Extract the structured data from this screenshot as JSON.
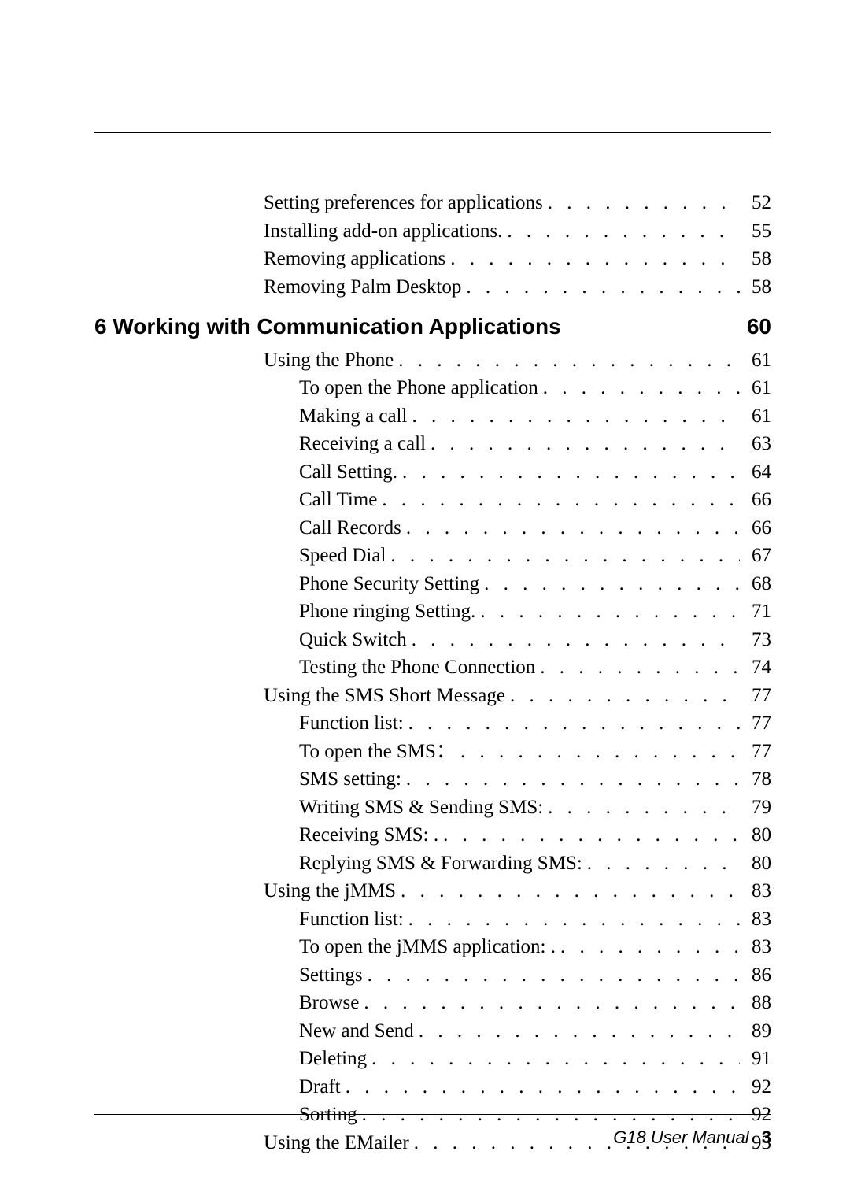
{
  "top_entries": [
    {
      "label": "Setting preferences for applications",
      "page": "52",
      "indent": 1
    },
    {
      "label": "Installing add-on applications.",
      "page": "55",
      "indent": 1
    },
    {
      "label": "Removing applications",
      "page": "58",
      "indent": 1
    },
    {
      "label": "Removing Palm Desktop",
      "page": "58",
      "indent": 1
    }
  ],
  "section": {
    "label": "6 Working with Communication Applications",
    "page": "60"
  },
  "entries": [
    {
      "label": "Using the Phone",
      "page": "61",
      "indent": 1
    },
    {
      "label": "To open the Phone application",
      "page": "61",
      "indent": 2
    },
    {
      "label": "Making a call",
      "page": "61",
      "indent": 2
    },
    {
      "label": "Receiving a call",
      "page": "63",
      "indent": 2
    },
    {
      "label": "Call Setting.",
      "page": "64",
      "indent": 2
    },
    {
      "label": "Call Time",
      "page": "66",
      "indent": 2
    },
    {
      "label": "Call Records",
      "page": "66",
      "indent": 2
    },
    {
      "label": "Speed Dial",
      "page": "67",
      "indent": 2
    },
    {
      "label": "Phone Security Setting",
      "page": "68",
      "indent": 2
    },
    {
      "label": "Phone ringing Setting.",
      "page": "71",
      "indent": 2
    },
    {
      "label": "Quick Switch",
      "page": "73",
      "indent": 2
    },
    {
      "label": "Testing the Phone Connection",
      "page": "74",
      "indent": 2
    },
    {
      "label": "Using the SMS Short Message",
      "page": "77",
      "indent": 1
    },
    {
      "label": "Function list:",
      "page": "77",
      "indent": 2
    },
    {
      "label": "To open the SMS：",
      "page": "77",
      "indent": 2
    },
    {
      "label": "SMS setting:",
      "page": "78",
      "indent": 2
    },
    {
      "label": "Writing SMS & Sending SMS:",
      "page": "79",
      "indent": 2
    },
    {
      "label": "Receiving SMS: .",
      "page": "80",
      "indent": 2
    },
    {
      "label": "Replying SMS & Forwarding SMS:",
      "page": "80",
      "indent": 2
    },
    {
      "label": "Using the jMMS",
      "page": "83",
      "indent": 1
    },
    {
      "label": "Function list:",
      "page": "83",
      "indent": 2
    },
    {
      "label": "To open the jMMS application: .",
      "page": "83",
      "indent": 2
    },
    {
      "label": "Settings",
      "page": "86",
      "indent": 2
    },
    {
      "label": "Browse",
      "page": "88",
      "indent": 2
    },
    {
      "label": "New and Send",
      "page": "89",
      "indent": 2
    },
    {
      "label": "Deleting",
      "page": "91",
      "indent": 2
    },
    {
      "label": "Draft",
      "page": "92",
      "indent": 2
    },
    {
      "label": "Sorting",
      "page": "92",
      "indent": 2
    },
    {
      "label": "Using the EMailer",
      "page": "93",
      "indent": 1
    }
  ],
  "footer": {
    "title": "G18 User Manual",
    "page_number": "3"
  }
}
